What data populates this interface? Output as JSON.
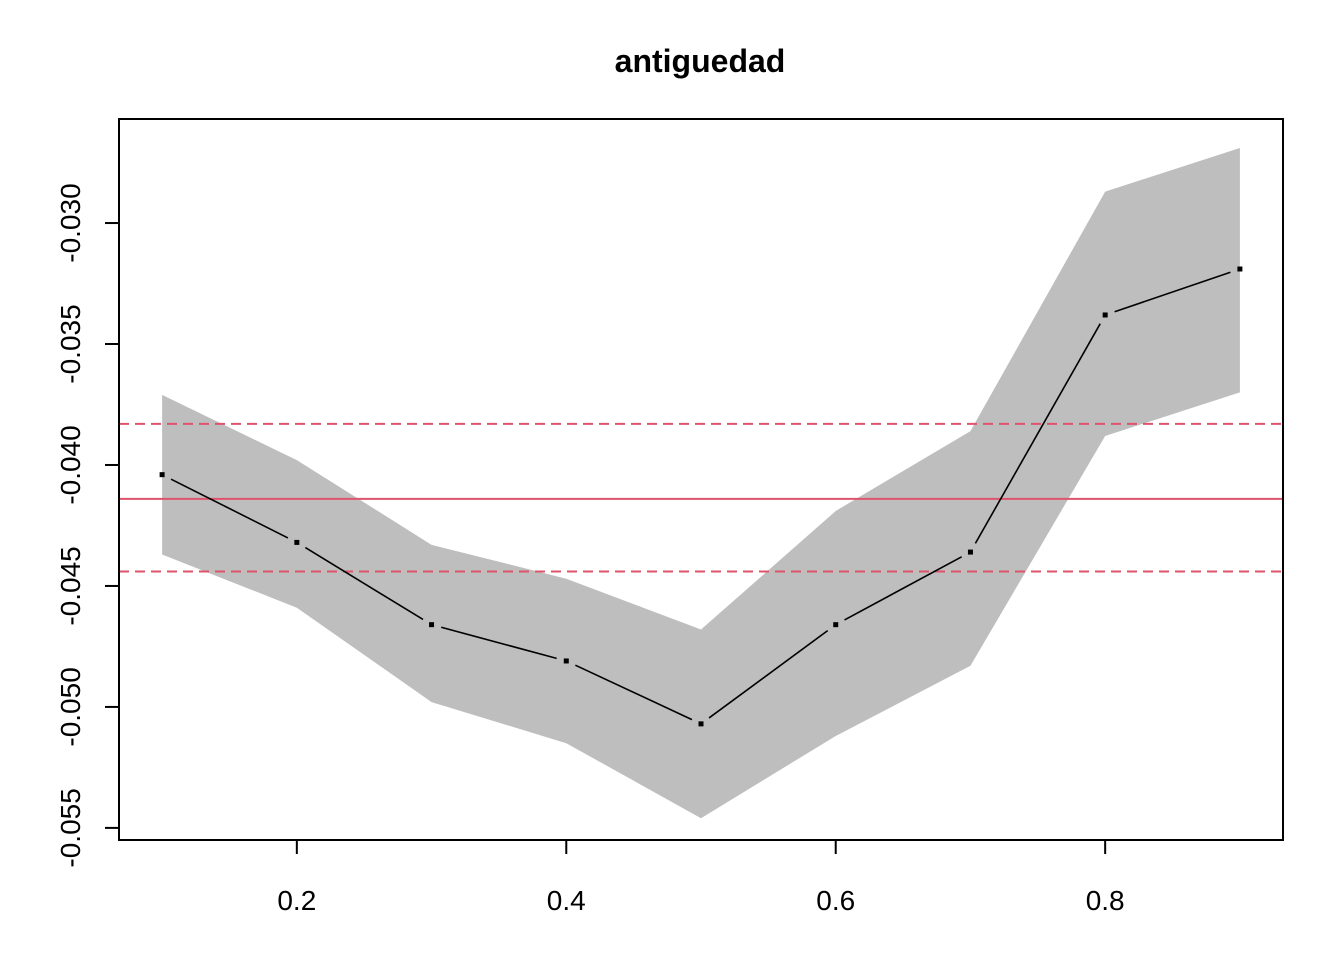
{
  "chart_data": {
    "type": "line",
    "title": "antiguedad",
    "xlabel": "",
    "ylabel": "",
    "xlim": [
      0.068,
      0.932
    ],
    "ylim": [
      -0.0555,
      -0.0257
    ],
    "x_ticks": [
      0.2,
      0.4,
      0.6,
      0.8
    ],
    "x_tick_labels": [
      "0.2",
      "0.4",
      "0.6",
      "0.8"
    ],
    "y_ticks": [
      -0.055,
      -0.05,
      -0.045,
      -0.04,
      -0.035,
      -0.03
    ],
    "y_tick_labels": [
      "-0.055",
      "-0.050",
      "-0.045",
      "-0.040",
      "-0.035",
      "-0.030"
    ],
    "grid": false,
    "series": [
      {
        "x": [
          0.1,
          0.2,
          0.3,
          0.4,
          0.5,
          0.6,
          0.7,
          0.8,
          0.9
        ],
        "y": [
          -0.0404,
          -0.0432,
          -0.0466,
          -0.0481,
          -0.0507,
          -0.0466,
          -0.0436,
          -0.0338,
          -0.0319
        ],
        "color": "#000000"
      }
    ],
    "band": {
      "x": [
        0.1,
        0.2,
        0.3,
        0.4,
        0.5,
        0.6,
        0.7,
        0.8,
        0.9
      ],
      "lower": [
        -0.0437,
        -0.0459,
        -0.0498,
        -0.0515,
        -0.0546,
        -0.0512,
        -0.0483,
        -0.0388,
        -0.037
      ],
      "upper": [
        -0.0371,
        -0.0398,
        -0.0433,
        -0.0447,
        -0.0468,
        -0.0419,
        -0.0386,
        -0.0287,
        -0.0269
      ],
      "color": "#bebebe"
    },
    "hlines": [
      {
        "y": -0.0414,
        "style": "solid",
        "color": "#df536b"
      },
      {
        "y": -0.0383,
        "style": "dashed",
        "color": "#df536b"
      },
      {
        "y": -0.0444,
        "style": "dashed",
        "color": "#df536b"
      }
    ]
  }
}
